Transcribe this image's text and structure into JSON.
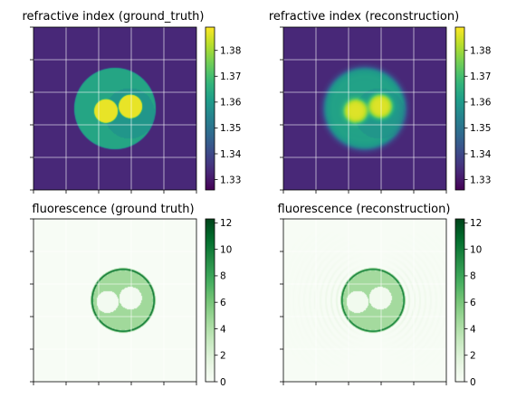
{
  "colors": {
    "viridis": [
      "#440154",
      "#482878",
      "#3e4989",
      "#31688e",
      "#26828e",
      "#1f9e89",
      "#35b779",
      "#6ece58",
      "#b5de2b",
      "#fde725"
    ],
    "greens": [
      "#00441b",
      "#006d2c",
      "#238b45",
      "#41ab5d",
      "#74c476",
      "#a1d99b",
      "#c7e9c0",
      "#e5f5e0",
      "#f7fcf5"
    ],
    "grid": "#ffffff"
  },
  "chart_data": [
    {
      "type": "heatmap",
      "title": "refractive index (ground_truth)",
      "colormap": "viridis",
      "colorbar": {
        "range": [
          1.326,
          1.389
        ],
        "ticks": [
          1.33,
          1.34,
          1.35,
          1.36,
          1.37,
          1.38
        ]
      },
      "grid": true,
      "xticks_labeled": false,
      "yticks_labeled": false,
      "scene": {
        "background": 1.333,
        "disk": {
          "value": 1.363,
          "blur": 0.2,
          "ripple": 0
        },
        "inner_region": {
          "value": 1.359
        },
        "blobs": [
          {
            "value": 1.387
          },
          {
            "value": 1.387
          }
        ]
      }
    },
    {
      "type": "heatmap",
      "title": "refractive index (reconstruction)",
      "colormap": "viridis",
      "colorbar": {
        "range": [
          1.326,
          1.389
        ],
        "ticks": [
          1.33,
          1.34,
          1.35,
          1.36,
          1.37,
          1.38
        ]
      },
      "grid": true,
      "xticks_labeled": false,
      "yticks_labeled": false,
      "scene": {
        "background": 1.333,
        "disk": {
          "value": 1.362,
          "blur": 1.6,
          "ripple": 0.0006
        },
        "inner_region": {
          "value": 1.359
        },
        "blobs": [
          {
            "value": 1.386
          },
          {
            "value": 1.386
          }
        ]
      }
    },
    {
      "type": "heatmap",
      "title": "fluorescence (ground truth)",
      "colormap": "greens_r",
      "colorbar": {
        "range": [
          0,
          12.3
        ],
        "ticks": [
          0,
          2,
          4,
          6,
          8,
          10,
          12
        ]
      },
      "grid": true,
      "xticks_labeled": false,
      "yticks_labeled": false,
      "scene": {
        "background": 0,
        "disk": {
          "value": 4.6
        },
        "rim": {
          "value": 12
        },
        "blobs": [
          {
            "value": 0.4
          },
          {
            "value": 0.4
          }
        ],
        "artifacts": 0
      }
    },
    {
      "type": "heatmap",
      "title": "fluorescence (reconstruction)",
      "colormap": "greens_r",
      "colorbar": {
        "range": [
          0,
          12.3
        ],
        "ticks": [
          0,
          2,
          4,
          6,
          8,
          10,
          12
        ]
      },
      "grid": true,
      "xticks_labeled": false,
      "yticks_labeled": false,
      "scene": {
        "background": 0,
        "disk": {
          "value": 4.5
        },
        "rim": {
          "value": 11.5
        },
        "blobs": [
          {
            "value": 0.5
          },
          {
            "value": 0.5
          }
        ],
        "artifacts": 1.6
      }
    }
  ]
}
